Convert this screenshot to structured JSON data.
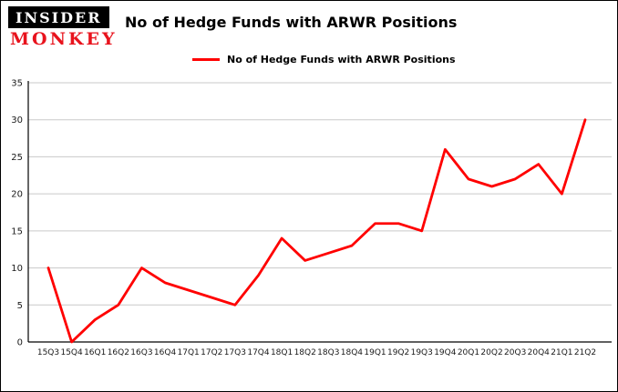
{
  "logo": {
    "top": "INSIDER",
    "bottom": "MONKEY"
  },
  "header": {
    "title": "No of Hedge Funds with ARWR Positions"
  },
  "legend": {
    "label": "No of Hedge Funds with ARWR Positions",
    "color": "#ff0000"
  },
  "chart_data": {
    "type": "line",
    "title": "No of Hedge Funds with ARWR Positions",
    "categories": [
      "15Q3",
      "15Q4",
      "16Q1",
      "16Q2",
      "16Q3",
      "16Q4",
      "17Q1",
      "17Q2",
      "17Q3",
      "17Q4",
      "18Q1",
      "18Q2",
      "18Q3",
      "18Q4",
      "19Q1",
      "19Q2",
      "19Q3",
      "19Q4",
      "20Q1",
      "20Q2",
      "20Q3",
      "20Q4",
      "21Q1",
      "21Q2"
    ],
    "values": [
      10,
      0,
      3,
      5,
      10,
      8,
      7,
      6,
      5,
      9,
      14,
      11,
      12,
      13,
      16,
      16,
      15,
      26,
      22,
      21,
      22,
      24,
      20,
      30
    ],
    "xlabel": "",
    "ylabel": "",
    "ylim": [
      0,
      35
    ],
    "yticks": [
      0,
      5,
      10,
      15,
      20,
      25,
      30,
      35
    ],
    "grid": true,
    "legend_position": "top-left",
    "line_color": "#ff0000",
    "grid_color": "#c9c9c9",
    "axis_color": "#000000",
    "tick_label_color": "#1a1a1a"
  }
}
